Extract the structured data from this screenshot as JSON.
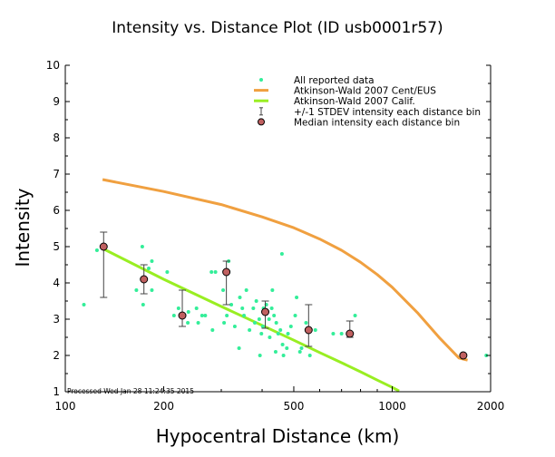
{
  "chart_data": {
    "type": "scatter",
    "title": "Intensity vs. Distance Plot (ID usb0001r57)",
    "xlabel": "Hypocentral Distance (km)",
    "ylabel": "Intensity",
    "xscale": "log",
    "xlim": [
      100,
      2000
    ],
    "ylim": [
      1,
      10
    ],
    "xticks": [
      100,
      200,
      500,
      1000,
      2000
    ],
    "xtick_labels": [
      "100",
      "200",
      "500",
      "1000",
      "2000"
    ],
    "yticks": [
      1,
      2,
      3,
      4,
      5,
      6,
      7,
      8,
      9,
      10
    ],
    "ytick_labels": [
      "1",
      "2",
      "3",
      "4",
      "5",
      "6",
      "7",
      "8",
      "9",
      "10"
    ],
    "footer": "Processed Wed Jan 28 11:24:35 2015",
    "legend_position": "top-right",
    "colors": {
      "reported": "#33ee99",
      "cent_eus": "#f0a040",
      "calif": "#99ee22",
      "stdev": "#444444",
      "median_fill": "#c06060",
      "median_edge": "#000000",
      "axes": "#000000"
    },
    "series": [
      {
        "name": "All reported data",
        "kind": "points",
        "points": [
          [
            114,
            3.4
          ],
          [
            125,
            4.9
          ],
          [
            131,
            5.0
          ],
          [
            165,
            3.8
          ],
          [
            172,
            5.0
          ],
          [
            173,
            3.4
          ],
          [
            180,
            4.4
          ],
          [
            184,
            4.6
          ],
          [
            184,
            3.8
          ],
          [
            205,
            4.3
          ],
          [
            215,
            3.1
          ],
          [
            222,
            3.3
          ],
          [
            228,
            3.1
          ],
          [
            237,
            2.9
          ],
          [
            238,
            3.2
          ],
          [
            252,
            3.3
          ],
          [
            255,
            2.9
          ],
          [
            262,
            3.1
          ],
          [
            268,
            3.1
          ],
          [
            280,
            4.3
          ],
          [
            282,
            2.7
          ],
          [
            288,
            4.3
          ],
          [
            304,
            3.8
          ],
          [
            306,
            2.9
          ],
          [
            312,
            3.1
          ],
          [
            316,
            4.6
          ],
          [
            322,
            3.4
          ],
          [
            330,
            2.8
          ],
          [
            340,
            2.2
          ],
          [
            342,
            3.6
          ],
          [
            348,
            3.3
          ],
          [
            352,
            3.1
          ],
          [
            358,
            3.8
          ],
          [
            366,
            2.7
          ],
          [
            376,
            3.3
          ],
          [
            380,
            2.9
          ],
          [
            384,
            3.5
          ],
          [
            392,
            3.0
          ],
          [
            394,
            2.0
          ],
          [
            398,
            2.6
          ],
          [
            402,
            2.8
          ],
          [
            404,
            3.3
          ],
          [
            412,
            3.4
          ],
          [
            420,
            3.0
          ],
          [
            422,
            2.5
          ],
          [
            428,
            3.3
          ],
          [
            430,
            3.8
          ],
          [
            435,
            3.1
          ],
          [
            440,
            2.1
          ],
          [
            442,
            2.9
          ],
          [
            448,
            2.6
          ],
          [
            455,
            2.7
          ],
          [
            460,
            4.8
          ],
          [
            462,
            2.3
          ],
          [
            465,
            2.0
          ],
          [
            476,
            2.2
          ],
          [
            480,
            2.6
          ],
          [
            490,
            2.8
          ],
          [
            505,
            3.1
          ],
          [
            510,
            3.6
          ],
          [
            522,
            2.1
          ],
          [
            528,
            2.2
          ],
          [
            545,
            2.9
          ],
          [
            560,
            2.0
          ],
          [
            582,
            2.7
          ],
          [
            660,
            2.6
          ],
          [
            700,
            2.6
          ],
          [
            770,
            3.1
          ],
          [
            1940,
            2.0
          ]
        ]
      },
      {
        "name": "Atkinson-Wald 2007 Cent/EUS",
        "kind": "line",
        "x": [
          130,
          200,
          300,
          400,
          500,
          600,
          700,
          800,
          900,
          1000,
          1200,
          1400,
          1600,
          1700
        ],
        "y": [
          6.85,
          6.52,
          6.16,
          5.82,
          5.52,
          5.21,
          4.9,
          4.57,
          4.23,
          3.88,
          3.16,
          2.47,
          1.93,
          1.87
        ]
      },
      {
        "name": "Atkinson-Wald 2007 Calif.",
        "kind": "line",
        "x": [
          130,
          200,
          300,
          400,
          500,
          600,
          700,
          800,
          900,
          1000,
          1050
        ],
        "y": [
          4.95,
          4.1,
          3.35,
          2.83,
          2.42,
          2.08,
          1.8,
          1.55,
          1.32,
          1.12,
          1.02
        ]
      },
      {
        "name": "+/-1 STDEV intensity each distance bin",
        "kind": "errorbars",
        "x": [
          131,
          174,
          228,
          311,
          409,
          555,
          742
        ],
        "low": [
          3.6,
          3.7,
          2.8,
          3.4,
          2.75,
          2.25,
          2.5
        ],
        "high": [
          5.4,
          4.5,
          3.8,
          4.6,
          3.5,
          3.4,
          2.95
        ]
      },
      {
        "name": "Median intensity each distance bin",
        "kind": "medians",
        "points": [
          [
            131,
            5.0
          ],
          [
            174,
            4.1
          ],
          [
            228,
            3.1
          ],
          [
            311,
            4.3
          ],
          [
            409,
            3.2
          ],
          [
            555,
            2.7
          ],
          [
            742,
            2.6
          ],
          [
            1650,
            2.0
          ]
        ]
      }
    ]
  }
}
